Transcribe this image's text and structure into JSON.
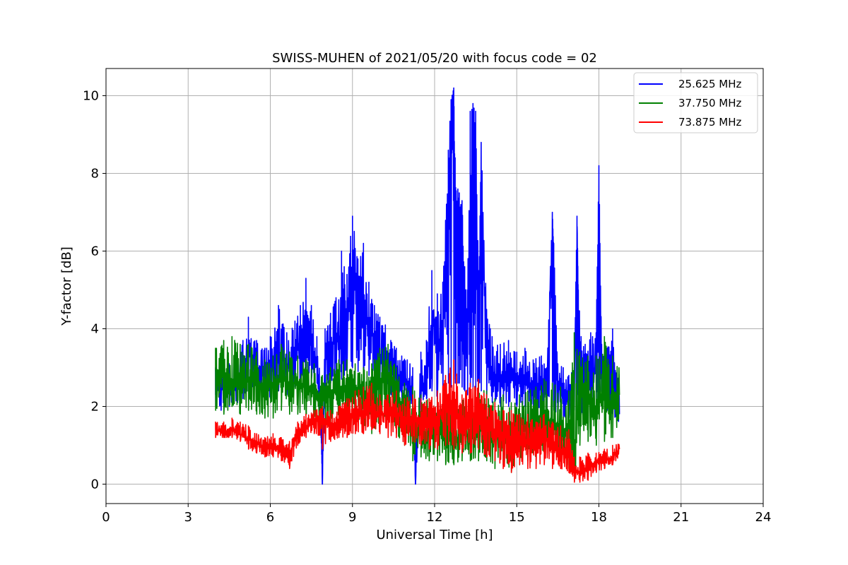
{
  "chart_data": {
    "type": "line",
    "title": "SWISS-MUHEN of 2021/05/20 with focus code = 02",
    "xlabel": "Universal Time [h]",
    "ylabel": "Y-factor [dB]",
    "xlim": [
      0,
      24
    ],
    "ylim": [
      -0.5,
      10.7
    ],
    "xticks": [
      0,
      3,
      6,
      9,
      12,
      15,
      18,
      21,
      24
    ],
    "xtick_labels": [
      "0",
      "3",
      "6",
      "9",
      "12",
      "15",
      "18",
      "21",
      "24"
    ],
    "yticks": [
      0,
      2,
      4,
      6,
      8,
      10
    ],
    "ytick_labels": [
      "0",
      "2",
      "4",
      "6",
      "8",
      "10"
    ],
    "grid": true,
    "legend_position": "top-right",
    "series": [
      {
        "name": "25.625 MHz",
        "color": "#0000ff",
        "x": [
          4.0,
          4.2,
          4.5,
          4.8,
          5.0,
          5.2,
          5.5,
          5.8,
          6.0,
          6.3,
          6.6,
          6.9,
          7.1,
          7.3,
          7.5,
          7.7,
          7.85,
          7.9,
          8.0,
          8.2,
          8.4,
          8.6,
          8.7,
          8.8,
          9.0,
          9.2,
          9.4,
          9.6,
          9.8,
          10.0,
          10.2,
          10.4,
          10.6,
          10.8,
          11.0,
          11.2,
          11.3,
          11.5,
          11.7,
          11.9,
          12.1,
          12.3,
          12.5,
          12.6,
          12.7,
          12.75,
          12.85,
          12.9,
          13.0,
          13.1,
          13.2,
          13.3,
          13.4,
          13.5,
          13.6,
          13.7,
          13.9,
          14.1,
          14.4,
          14.7,
          15.0,
          15.3,
          15.6,
          15.9,
          16.1,
          16.3,
          16.35,
          16.5,
          16.7,
          16.9,
          17.1,
          17.2,
          17.25,
          17.35,
          17.5,
          17.7,
          17.9,
          18.0,
          18.1,
          18.3,
          18.5,
          18.75
        ],
        "y": [
          2.3,
          2.6,
          2.4,
          2.6,
          2.8,
          3.6,
          3.0,
          2.8,
          2.9,
          3.4,
          3.0,
          3.2,
          3.8,
          4.3,
          3.6,
          3.1,
          1.8,
          0.0,
          3.2,
          3.5,
          3.9,
          3.6,
          4.8,
          4.0,
          5.6,
          4.2,
          4.9,
          4.1,
          3.7,
          3.2,
          3.5,
          2.9,
          2.8,
          2.7,
          2.6,
          2.4,
          0.0,
          2.6,
          2.5,
          4.4,
          3.3,
          3.8,
          7.1,
          9.3,
          10.2,
          6.5,
          5.2,
          6.8,
          6.0,
          4.1,
          3.5,
          6.5,
          9.8,
          7.2,
          3.6,
          8.8,
          3.1,
          2.9,
          2.7,
          2.8,
          2.6,
          2.7,
          2.5,
          2.6,
          2.5,
          7.0,
          5.9,
          2.5,
          2.3,
          2.2,
          2.4,
          6.9,
          4.6,
          2.9,
          2.7,
          2.8,
          3.0,
          8.2,
          3.0,
          2.8,
          3.3,
          1.8
        ],
        "lo": [
          2.0,
          1.9,
          2.0,
          2.1,
          2.2,
          2.4,
          2.3,
          2.2,
          2.2,
          2.4,
          2.3,
          2.5,
          2.6,
          2.8,
          2.7,
          2.6,
          1.2,
          0.0,
          2.4,
          2.6,
          2.7,
          2.7,
          2.8,
          2.9,
          3.0,
          2.9,
          2.9,
          2.8,
          2.7,
          2.5,
          2.4,
          2.3,
          2.2,
          2.2,
          2.1,
          2.0,
          0.0,
          2.1,
          2.2,
          2.4,
          2.2,
          2.4,
          2.6,
          2.5,
          2.7,
          2.6,
          2.6,
          2.6,
          2.5,
          2.4,
          2.3,
          2.5,
          2.5,
          2.4,
          2.3,
          2.4,
          2.2,
          2.1,
          2.0,
          2.0,
          2.0,
          2.0,
          1.9,
          1.9,
          1.9,
          2.0,
          1.9,
          1.8,
          1.7,
          1.7,
          1.9,
          1.9,
          1.8,
          1.8,
          1.8,
          1.9,
          1.9,
          2.0,
          2.0,
          1.9,
          1.8,
          1.3
        ],
        "hi": [
          3.0,
          3.2,
          3.1,
          3.3,
          3.7,
          4.3,
          3.7,
          3.5,
          3.8,
          4.6,
          3.9,
          4.2,
          4.6,
          5.3,
          4.6,
          3.8,
          2.5,
          0.5,
          4.0,
          4.4,
          4.8,
          6.0,
          5.6,
          5.4,
          6.9,
          5.8,
          6.2,
          5.2,
          4.6,
          4.3,
          4.1,
          3.7,
          3.5,
          3.3,
          3.2,
          3.0,
          1.5,
          3.4,
          3.7,
          5.5,
          4.9,
          5.2,
          8.6,
          9.9,
          10.2,
          8.4,
          7.6,
          7.5,
          7.3,
          5.6,
          5.0,
          9.6,
          9.8,
          9.6,
          5.5,
          8.8,
          4.5,
          3.8,
          3.6,
          3.7,
          3.4,
          3.5,
          3.2,
          3.3,
          3.0,
          7.0,
          6.2,
          3.1,
          3.0,
          2.8,
          3.0,
          6.9,
          5.0,
          3.8,
          3.6,
          3.9,
          3.9,
          8.2,
          3.6,
          3.5,
          4.0,
          2.8
        ]
      },
      {
        "name": "37.750 MHz",
        "color": "#008000",
        "x": [
          4.0,
          4.3,
          4.6,
          4.9,
          5.2,
          5.5,
          5.8,
          6.1,
          6.4,
          6.7,
          7.0,
          7.3,
          7.6,
          7.9,
          8.2,
          8.5,
          8.8,
          9.1,
          9.4,
          9.7,
          10.0,
          10.3,
          10.6,
          10.9,
          11.2,
          11.5,
          11.8,
          12.1,
          12.4,
          12.7,
          13.0,
          13.3,
          13.6,
          13.9,
          14.2,
          14.5,
          14.8,
          15.1,
          15.4,
          15.7,
          16.0,
          16.3,
          16.6,
          16.9,
          17.1,
          17.3,
          17.6,
          17.9,
          18.2,
          18.5,
          18.75
        ],
        "y": [
          2.9,
          2.8,
          2.7,
          2.6,
          2.7,
          2.6,
          2.5,
          2.5,
          2.7,
          2.6,
          2.6,
          2.5,
          2.4,
          2.1,
          2.4,
          2.5,
          2.5,
          2.4,
          2.3,
          2.2,
          2.7,
          2.9,
          2.1,
          1.9,
          1.6,
          1.4,
          1.3,
          1.4,
          1.2,
          1.1,
          1.3,
          1.2,
          1.4,
          1.3,
          1.2,
          1.3,
          1.1,
          1.3,
          1.4,
          1.5,
          1.7,
          1.6,
          1.5,
          1.2,
          0.9,
          2.3,
          2.1,
          2.0,
          2.2,
          2.1,
          2.3
        ],
        "lo": [
          1.9,
          1.8,
          2.0,
          1.8,
          1.9,
          1.8,
          1.7,
          1.7,
          1.9,
          1.8,
          1.8,
          1.8,
          1.7,
          1.3,
          1.5,
          1.6,
          1.7,
          1.6,
          1.5,
          1.3,
          1.6,
          1.8,
          1.3,
          1.0,
          0.6,
          0.7,
          0.6,
          0.6,
          0.5,
          0.5,
          0.6,
          0.6,
          0.6,
          0.6,
          0.4,
          0.5,
          0.3,
          0.5,
          0.6,
          0.7,
          0.8,
          0.9,
          0.6,
          0.4,
          0.1,
          1.0,
          1.1,
          1.0,
          1.1,
          1.2,
          1.4
        ],
        "hi": [
          3.5,
          3.7,
          3.8,
          3.6,
          3.6,
          3.4,
          3.2,
          3.3,
          3.6,
          3.4,
          3.3,
          3.2,
          3.1,
          2.8,
          3.0,
          3.2,
          3.2,
          3.1,
          3.0,
          3.1,
          3.5,
          3.6,
          3.0,
          2.6,
          2.5,
          2.3,
          2.2,
          2.2,
          2.1,
          2.0,
          2.2,
          2.3,
          2.6,
          2.4,
          2.2,
          2.3,
          2.1,
          2.3,
          2.4,
          2.5,
          2.7,
          2.6,
          2.5,
          2.4,
          3.9,
          3.4,
          3.3,
          3.3,
          3.8,
          3.3,
          3.4
        ]
      },
      {
        "name": "73.875 MHz",
        "color": "#ff0000",
        "x": [
          4.0,
          4.3,
          4.6,
          4.9,
          5.2,
          5.5,
          5.8,
          6.1,
          6.4,
          6.7,
          7.0,
          7.3,
          7.6,
          7.9,
          8.2,
          8.5,
          8.8,
          9.1,
          9.4,
          9.7,
          10.0,
          10.3,
          10.6,
          10.9,
          11.2,
          11.5,
          11.8,
          12.1,
          12.4,
          12.7,
          13.0,
          13.3,
          13.6,
          13.9,
          14.2,
          14.5,
          14.8,
          15.1,
          15.4,
          15.7,
          16.0,
          16.3,
          16.6,
          16.9,
          17.1,
          17.3,
          17.6,
          17.9,
          18.2,
          18.5,
          18.75
        ],
        "y": [
          1.4,
          1.35,
          1.4,
          1.3,
          1.15,
          1.05,
          0.95,
          1.0,
          0.9,
          0.8,
          1.3,
          1.5,
          1.6,
          1.7,
          1.5,
          1.5,
          1.6,
          1.8,
          1.8,
          1.9,
          1.8,
          1.8,
          1.8,
          1.7,
          1.7,
          1.6,
          1.6,
          1.7,
          2.0,
          1.8,
          1.6,
          1.8,
          1.8,
          1.5,
          1.4,
          1.2,
          1.2,
          1.1,
          1.1,
          1.0,
          1.2,
          1.0,
          0.9,
          0.8,
          0.3,
          0.3,
          0.45,
          0.55,
          0.6,
          0.7,
          0.9
        ],
        "lo": [
          1.2,
          1.2,
          1.2,
          1.1,
          0.9,
          0.8,
          0.7,
          0.7,
          0.6,
          0.4,
          1.0,
          1.2,
          1.3,
          0.9,
          1.1,
          1.2,
          1.2,
          1.3,
          1.3,
          1.4,
          1.3,
          1.2,
          1.2,
          1.0,
          1.1,
          1.0,
          0.9,
          0.9,
          1.0,
          0.9,
          0.8,
          0.8,
          0.9,
          0.7,
          0.6,
          0.4,
          0.3,
          0.5,
          0.4,
          0.4,
          0.5,
          0.4,
          0.4,
          0.3,
          0.05,
          0.05,
          0.1,
          0.3,
          0.4,
          0.5,
          0.7
        ],
        "hi": [
          1.6,
          1.6,
          1.7,
          1.6,
          1.5,
          1.3,
          1.2,
          1.3,
          1.2,
          1.1,
          1.6,
          1.8,
          1.9,
          2.0,
          1.9,
          2.0,
          2.2,
          2.4,
          2.5,
          2.6,
          2.3,
          2.3,
          2.4,
          2.2,
          2.3,
          2.2,
          2.2,
          2.4,
          2.8,
          3.2,
          2.3,
          2.6,
          2.7,
          2.3,
          2.1,
          1.9,
          1.9,
          1.8,
          1.8,
          1.6,
          1.8,
          1.6,
          1.5,
          1.4,
          0.7,
          0.7,
          0.8,
          0.8,
          0.9,
          1.0,
          1.1
        ]
      }
    ]
  }
}
